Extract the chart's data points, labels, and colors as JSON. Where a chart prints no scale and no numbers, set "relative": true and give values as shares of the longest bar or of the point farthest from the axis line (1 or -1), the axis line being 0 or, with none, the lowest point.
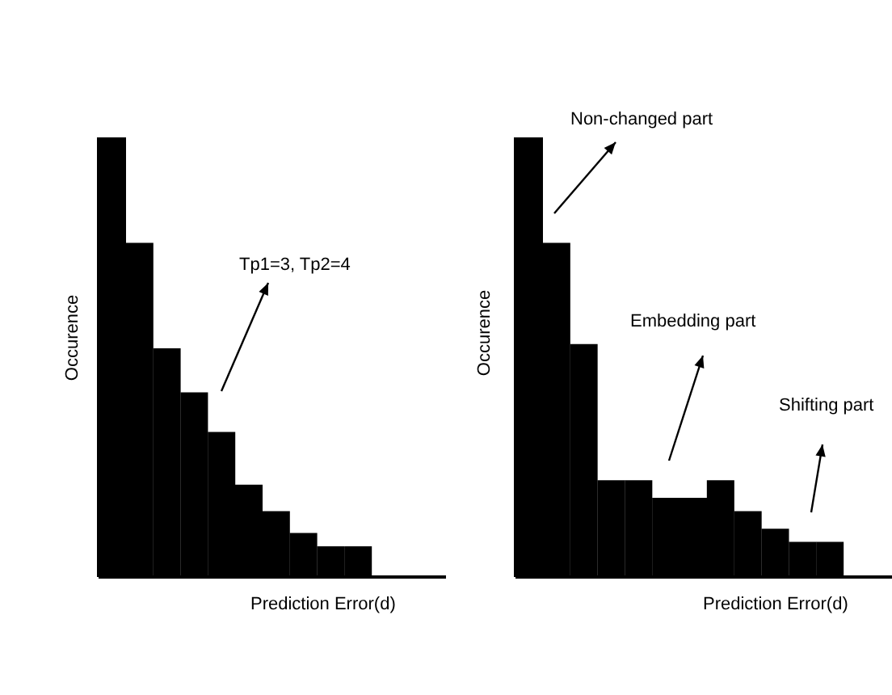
{
  "chart_data": [
    {
      "type": "bar",
      "relative": true,
      "categories": [
        null,
        null,
        null,
        null,
        null,
        null,
        null,
        null,
        null,
        null
      ],
      "values": [
        1,
        0.76,
        0.52,
        0.42,
        0.33,
        0.21,
        0.15,
        0.1,
        0.07,
        0.07
      ],
      "color": "#000000",
      "xlabel": "Prediction Error(d)",
      "ylabel": "Occurence",
      "annotations": [
        "Tp1=3, Tp2=4"
      ],
      "grid": false,
      "legend": false
    },
    {
      "type": "bar",
      "relative": true,
      "categories": [
        null,
        null,
        null,
        null,
        null,
        null,
        null,
        null,
        null,
        null,
        null,
        null
      ],
      "values": [
        1,
        0.76,
        0.53,
        0.22,
        0.22,
        0.18,
        0.18,
        0.22,
        0.15,
        0.11,
        0.08,
        0.08
      ],
      "color": "#000000",
      "xlabel": "Prediction Error(d)",
      "ylabel": "Occurence",
      "annotations": [
        "Non-changed part",
        "Embedding part",
        "Shifting part"
      ],
      "grid": false,
      "legend": false
    }
  ]
}
